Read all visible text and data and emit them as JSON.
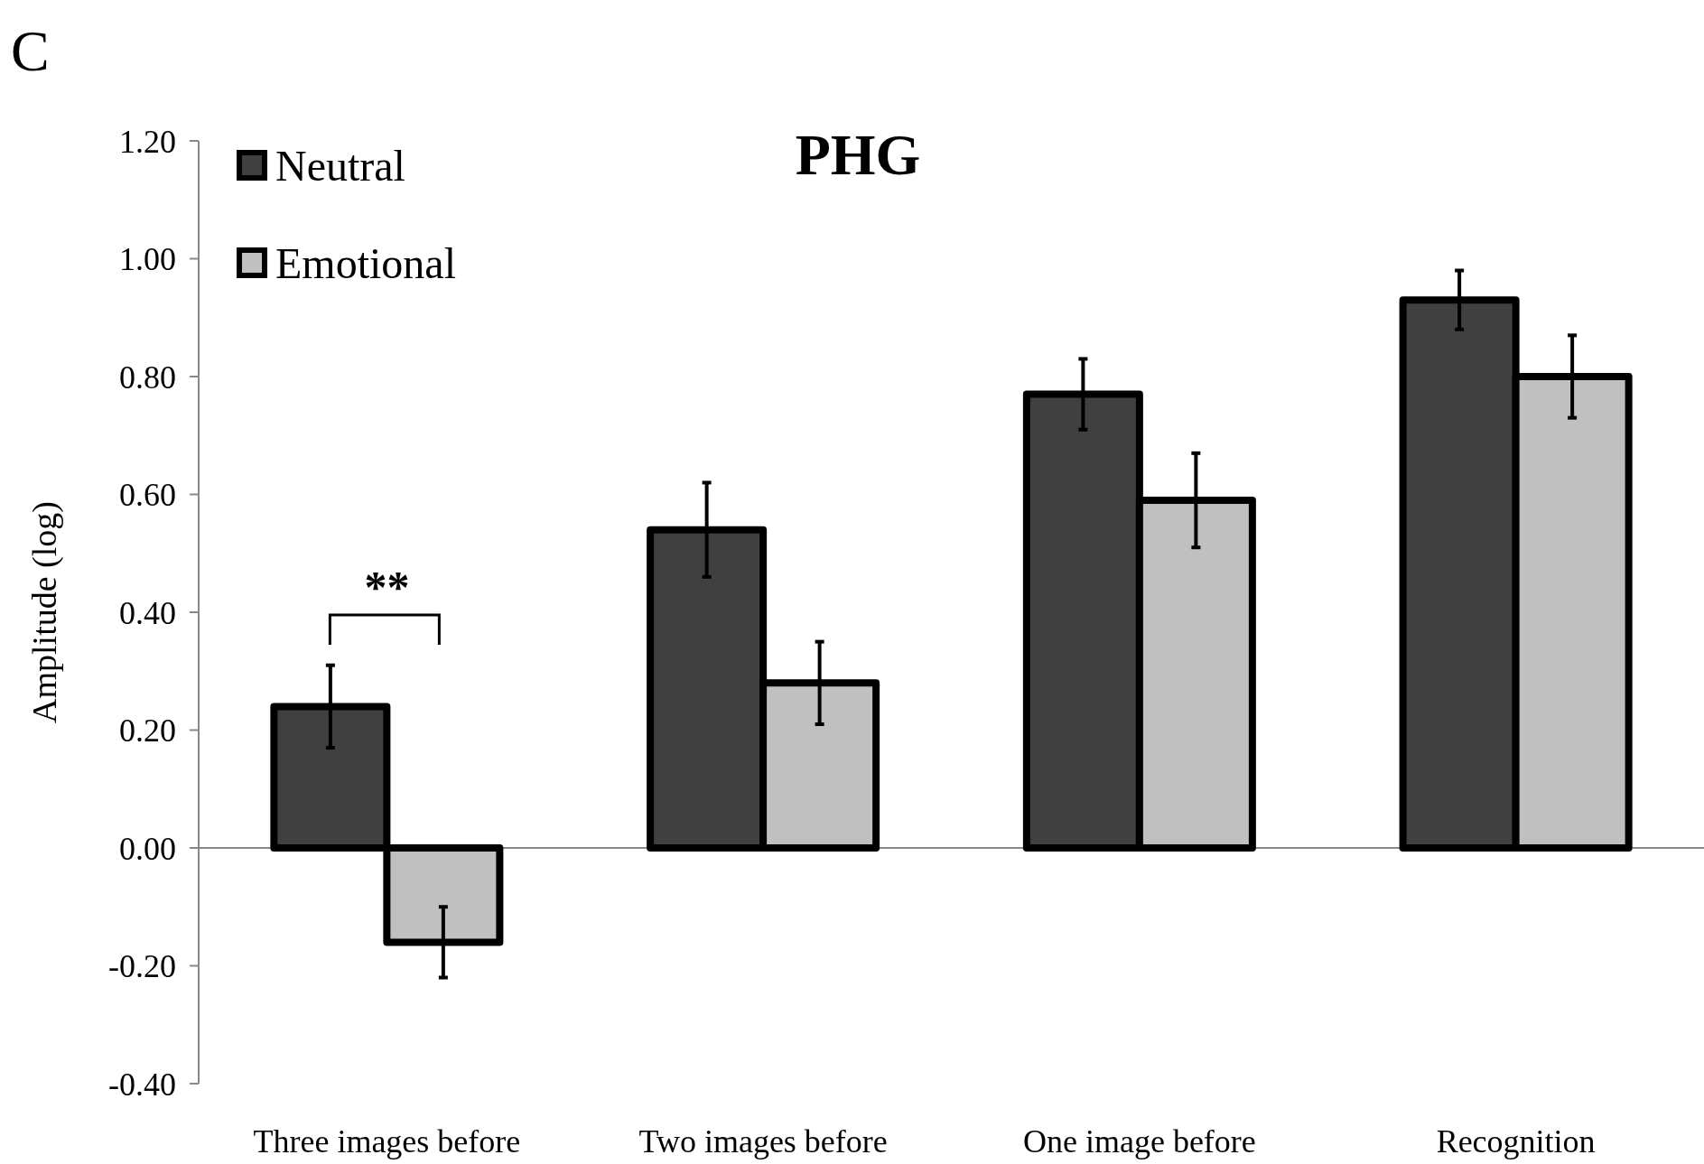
{
  "chart_data": {
    "type": "bar",
    "title": "PHG",
    "ylabel": "Amplitude (log)",
    "categories": [
      "Three images before",
      "Two images before",
      "One image before",
      "Recognition"
    ],
    "series": [
      {
        "name": "Neutral",
        "color": "#404040",
        "values": [
          0.24,
          0.54,
          0.77,
          0.93
        ],
        "errors": [
          0.07,
          0.08,
          0.06,
          0.05
        ]
      },
      {
        "name": "Emotional",
        "color": "#c0c0c0",
        "values": [
          -0.16,
          0.28,
          0.59,
          0.8
        ],
        "errors": [
          0.06,
          0.07,
          0.08,
          0.07
        ]
      }
    ],
    "ylim": [
      -0.4,
      1.2
    ],
    "yticks": [
      {
        "value": -0.4,
        "label": "-0.40"
      },
      {
        "value": -0.2,
        "label": "-0.20"
      },
      {
        "value": 0,
        "label": "0.00"
      },
      {
        "value": 0.2,
        "label": "0.20"
      },
      {
        "value": 0.4,
        "label": "0.40"
      },
      {
        "value": 0.6,
        "label": "0.60"
      },
      {
        "value": 0.8,
        "label": "0.80"
      },
      {
        "value": 1,
        "label": "1.00"
      },
      {
        "value": 1.2,
        "label": "1.20"
      }
    ],
    "legend": "top left",
    "annotations": [
      "C",
      "**"
    ]
  }
}
